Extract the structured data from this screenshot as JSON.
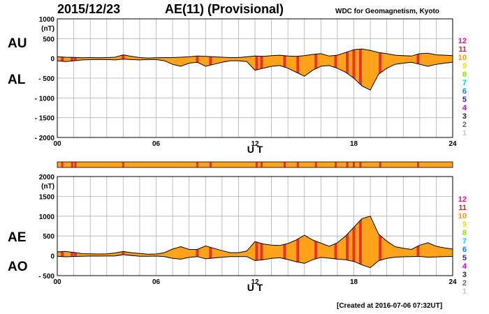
{
  "header": {
    "date": "2015/12/23",
    "title": "AE(11) (Provisional)",
    "source": "WDC for Geomagnetism, Kyoto"
  },
  "footer": {
    "created": "[Created at 2016-07-06 07:32UT]"
  },
  "colors": {
    "fill": "#ffa31a",
    "highlight": "#e8312a",
    "line": "#000000",
    "grid": "#b0b0b0"
  },
  "chart_data": [
    {
      "type": "area",
      "panel": "AU/AL",
      "side_labels": {
        "upper": "AU",
        "lower": "AL"
      },
      "ylabel": "(nT)",
      "xlabel": "U T",
      "xlim": [
        0,
        24
      ],
      "ylim": [
        -2000,
        1000
      ],
      "x_ticks": [
        0,
        6,
        12,
        18,
        24
      ],
      "x_tick_labels": [
        "00",
        "06",
        "12",
        "18",
        "24"
      ],
      "y_ticks": [
        1000,
        500,
        0,
        -500,
        -1000,
        -1500,
        -2000
      ],
      "y_tick_labels": [
        "1000",
        "500",
        "0",
        "- 500",
        "- 1000",
        "- 1500",
        "- 2000"
      ],
      "grid": true,
      "series": [
        {
          "name": "AU",
          "x": [
            0,
            0.5,
            1,
            1.5,
            2,
            2.5,
            3,
            3.5,
            4,
            4.5,
            5,
            5.5,
            6,
            6.5,
            7,
            7.5,
            8,
            8.5,
            9,
            9.5,
            10,
            10.5,
            11,
            11.5,
            12,
            12.5,
            13,
            13.5,
            14,
            14.5,
            15,
            15.5,
            16,
            16.5,
            17,
            17.5,
            18,
            18.5,
            19,
            19.5,
            20,
            20.5,
            21,
            21.5,
            22,
            22.5,
            23,
            23.5,
            24
          ],
          "values": [
            40,
            30,
            25,
            15,
            20,
            15,
            20,
            30,
            90,
            50,
            20,
            10,
            15,
            20,
            20,
            30,
            40,
            60,
            50,
            40,
            30,
            20,
            20,
            40,
            60,
            50,
            70,
            80,
            60,
            50,
            70,
            100,
            120,
            60,
            80,
            150,
            220,
            240,
            200,
            150,
            120,
            80,
            70,
            60,
            120,
            130,
            90,
            80,
            70
          ]
        },
        {
          "name": "AL",
          "x": [
            0,
            0.5,
            1,
            1.5,
            2,
            2.5,
            3,
            3.5,
            4,
            4.5,
            5,
            5.5,
            6,
            6.5,
            7,
            7.5,
            8,
            8.5,
            9,
            9.5,
            10,
            10.5,
            11,
            11.5,
            12,
            12.5,
            13,
            13.5,
            14,
            14.5,
            15,
            15.5,
            16,
            16.5,
            17,
            17.5,
            18,
            18.5,
            19,
            19.5,
            20,
            20.5,
            21,
            21.5,
            22,
            22.5,
            23,
            23.5,
            24
          ],
          "values": [
            -60,
            -80,
            -60,
            -40,
            -30,
            -30,
            -30,
            -40,
            -20,
            -30,
            -40,
            -30,
            -30,
            -60,
            -150,
            -200,
            -120,
            -100,
            -200,
            -150,
            -100,
            -60,
            -60,
            -80,
            -300,
            -250,
            -200,
            -180,
            -250,
            -350,
            -450,
            -300,
            -200,
            -180,
            -250,
            -350,
            -500,
            -700,
            -800,
            -400,
            -250,
            -150,
            -120,
            -100,
            -150,
            -200,
            -150,
            -120,
            -100
          ]
        }
      ]
    },
    {
      "type": "area",
      "panel": "AE/AO",
      "side_labels": {
        "upper": "AE",
        "lower": "AO"
      },
      "ylabel": "(nT)",
      "xlabel": "U T",
      "xlim": [
        0,
        24
      ],
      "ylim": [
        -500,
        2000
      ],
      "x_ticks": [
        0,
        6,
        12,
        18,
        24
      ],
      "x_tick_labels": [
        "00",
        "06",
        "12",
        "18",
        "24"
      ],
      "y_ticks": [
        2000,
        1500,
        1000,
        500,
        0,
        -500
      ],
      "y_tick_labels": [
        "2000",
        "1500",
        "1000",
        "500",
        "0",
        "- 500"
      ],
      "grid": true,
      "series": [
        {
          "name": "AE",
          "x": [
            0,
            0.5,
            1,
            1.5,
            2,
            2.5,
            3,
            3.5,
            4,
            4.5,
            5,
            5.5,
            6,
            6.5,
            7,
            7.5,
            8,
            8.5,
            9,
            9.5,
            10,
            10.5,
            11,
            11.5,
            12,
            12.5,
            13,
            13.5,
            14,
            14.5,
            15,
            15.5,
            16,
            16.5,
            17,
            17.5,
            18,
            18.5,
            19,
            19.5,
            20,
            20.5,
            21,
            21.5,
            22,
            22.5,
            23,
            23.5,
            24
          ],
          "values": [
            100,
            110,
            85,
            55,
            50,
            45,
            50,
            70,
            110,
            80,
            60,
            40,
            45,
            80,
            170,
            230,
            160,
            160,
            250,
            190,
            130,
            80,
            80,
            120,
            360,
            300,
            270,
            260,
            310,
            400,
            520,
            400,
            320,
            240,
            330,
            500,
            720,
            940,
            1000,
            550,
            370,
            230,
            190,
            160,
            270,
            330,
            240,
            200,
            170
          ]
        },
        {
          "name": "AO",
          "x": [
            0,
            0.5,
            1,
            1.5,
            2,
            2.5,
            3,
            3.5,
            4,
            4.5,
            5,
            5.5,
            6,
            6.5,
            7,
            7.5,
            8,
            8.5,
            9,
            9.5,
            10,
            10.5,
            11,
            11.5,
            12,
            12.5,
            13,
            13.5,
            14,
            14.5,
            15,
            15.5,
            16,
            16.5,
            17,
            17.5,
            18,
            18.5,
            19,
            19.5,
            20,
            20.5,
            21,
            21.5,
            22,
            22.5,
            23,
            23.5,
            24
          ],
          "values": [
            -10,
            -25,
            -17,
            -12,
            -5,
            -7,
            -5,
            -5,
            35,
            10,
            -10,
            -10,
            -7,
            -20,
            -65,
            -85,
            -40,
            -20,
            -75,
            -55,
            -35,
            -20,
            -20,
            -20,
            -120,
            -100,
            -65,
            -50,
            -95,
            -150,
            -190,
            -100,
            -40,
            -60,
            -85,
            -100,
            -140,
            -230,
            -300,
            -125,
            -65,
            -35,
            -25,
            -20,
            -15,
            -35,
            -30,
            -20,
            -15
          ]
        }
      ]
    }
  ],
  "highlight_hours": [
    0.3,
    0.9,
    1.1,
    4.0,
    8.5,
    9.3,
    12.1,
    12.4,
    13.8,
    14.6,
    15.7,
    16.9,
    17.6,
    18.0,
    18.4,
    19.6,
    21.9
  ],
  "station_counts": {
    "labels": [
      "12",
      "11",
      "10",
      "9",
      "8",
      "7",
      "6",
      "5",
      "4",
      "3",
      "2",
      "1"
    ],
    "colors": [
      "#ee0d9a",
      "#e42121",
      "#ff9a00",
      "#e3e600",
      "#88e800",
      "#00d7d2",
      "#1a79ff",
      "#2a1fa8",
      "#c100d9",
      "#222222",
      "#666666",
      "#c8c8c8"
    ]
  }
}
